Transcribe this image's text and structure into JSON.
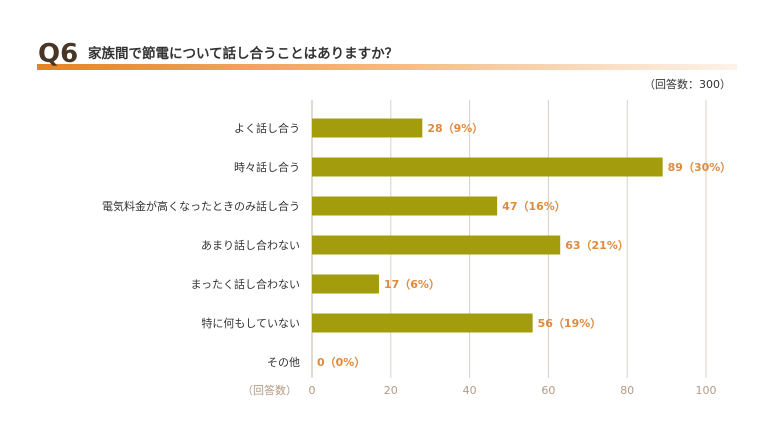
{
  "question": {
    "number": "Q6",
    "text": "家族間で節電について話し合うことはありますか？",
    "respondents": "（回答数：300）"
  },
  "colors": {
    "bar": "#a39d0e",
    "value_label": "#e08a3c",
    "grid": "#d9cfc6",
    "underline_start": "#e8821e",
    "underline_end": "#fdf3ea"
  },
  "chart_data": {
    "type": "bar",
    "orientation": "horizontal",
    "title": "家族間で節電について話し合うことはありますか？",
    "xlabel": "（回答数）",
    "xlim": [
      0,
      100
    ],
    "xticks": [
      0,
      20,
      40,
      60,
      80,
      100
    ],
    "categories": [
      "よく話し合う",
      "時々話し合う",
      "電気料金が高くなったときのみ話し合う",
      "あまり話し合わない",
      "まったく話し合わない",
      "特に何もしていない",
      "その他"
    ],
    "values": [
      28,
      89,
      47,
      63,
      17,
      56,
      0
    ],
    "labels": [
      "28（9%）",
      "89（30%）",
      "47（16%）",
      "63（21%）",
      "17（6%）",
      "56（19%）",
      "0（0%）"
    ],
    "grid": true
  }
}
